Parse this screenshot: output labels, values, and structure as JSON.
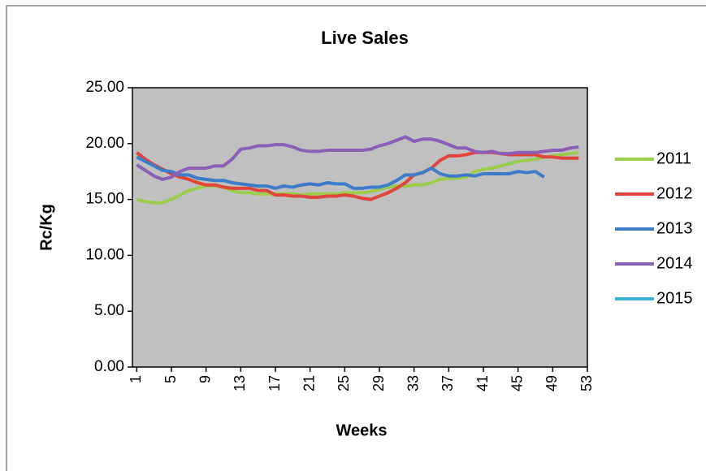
{
  "chart_data": {
    "type": "line",
    "title": "Live Sales",
    "x_label": "Weeks",
    "y_label": "Rc/Kg",
    "x": [
      1,
      2,
      3,
      4,
      5,
      6,
      7,
      8,
      9,
      10,
      11,
      12,
      13,
      14,
      15,
      16,
      17,
      18,
      19,
      20,
      21,
      22,
      23,
      24,
      25,
      26,
      27,
      28,
      29,
      30,
      31,
      32,
      33,
      34,
      35,
      36,
      37,
      38,
      39,
      40,
      41,
      42,
      43,
      44,
      45,
      46,
      47,
      48,
      49,
      50,
      51,
      52,
      53
    ],
    "xlim": [
      0.5,
      53
    ],
    "xticks": [
      1,
      5,
      9,
      13,
      17,
      21,
      25,
      29,
      33,
      37,
      41,
      45,
      49,
      53
    ],
    "ylim": [
      0,
      25
    ],
    "yticks": [
      {
        "value": 0,
        "label": "0.00"
      },
      {
        "value": 5,
        "label": "5.00"
      },
      {
        "value": 10,
        "label": "10.00"
      },
      {
        "value": 15,
        "label": "15.00"
      },
      {
        "value": 20,
        "label": "20.00"
      },
      {
        "value": 25,
        "label": "25.00"
      }
    ],
    "legend": "right",
    "plot_background": "#c0c0c0",
    "series": [
      {
        "name": "2011",
        "color": "#9acd4c",
        "values": [
          15.0,
          14.8,
          14.7,
          14.7,
          15.0,
          15.4,
          15.8,
          16.0,
          16.2,
          16.2,
          16.1,
          15.8,
          15.6,
          15.6,
          15.5,
          15.5,
          15.5,
          15.5,
          15.5,
          15.4,
          15.5,
          15.5,
          15.5,
          15.5,
          15.6,
          15.6,
          15.6,
          15.7,
          15.9,
          16.1,
          16.2,
          16.2,
          16.3,
          16.3,
          16.5,
          16.8,
          16.9,
          16.9,
          17.0,
          17.5,
          17.7,
          17.8,
          18.0,
          18.2,
          18.4,
          18.5,
          18.6,
          18.8,
          18.9,
          19.0,
          19.1,
          19.2,
          null
        ]
      },
      {
        "name": "2012",
        "color": "#e0443a",
        "values": [
          19.2,
          18.6,
          18.1,
          17.7,
          17.3,
          17.0,
          16.8,
          16.5,
          16.3,
          16.3,
          16.1,
          16.0,
          16.0,
          16.0,
          15.8,
          15.8,
          15.4,
          15.4,
          15.3,
          15.3,
          15.2,
          15.2,
          15.3,
          15.3,
          15.4,
          15.3,
          15.1,
          15.0,
          15.3,
          15.6,
          16.0,
          16.5,
          17.2,
          17.4,
          17.8,
          18.5,
          18.9,
          18.9,
          19.0,
          19.2,
          19.2,
          19.2,
          19.1,
          19.0,
          19.0,
          19.0,
          19.0,
          18.8,
          18.8,
          18.7,
          18.7,
          18.7,
          null
        ]
      },
      {
        "name": "2013",
        "color": "#3d7cc9",
        "values": [
          18.8,
          18.4,
          18.0,
          17.6,
          17.5,
          17.2,
          17.2,
          16.9,
          16.8,
          16.7,
          16.7,
          16.5,
          16.4,
          16.3,
          16.2,
          16.2,
          16.0,
          16.2,
          16.1,
          16.3,
          16.4,
          16.3,
          16.5,
          16.4,
          16.4,
          16.0,
          16.0,
          16.1,
          16.1,
          16.3,
          16.7,
          17.2,
          17.2,
          17.4,
          17.8,
          17.3,
          17.1,
          17.1,
          17.2,
          17.1,
          17.3,
          17.3,
          17.3,
          17.3,
          17.5,
          17.4,
          17.5,
          17.0,
          null,
          null,
          null,
          null,
          null
        ]
      },
      {
        "name": "2014",
        "color": "#8b5fb5",
        "values": [
          18.1,
          17.6,
          17.1,
          16.8,
          17.0,
          17.5,
          17.8,
          17.8,
          17.8,
          18.0,
          18.0,
          18.6,
          19.5,
          19.6,
          19.8,
          19.8,
          19.9,
          19.9,
          19.7,
          19.4,
          19.3,
          19.3,
          19.4,
          19.4,
          19.4,
          19.4,
          19.4,
          19.5,
          19.8,
          20.0,
          20.3,
          20.6,
          20.2,
          20.4,
          20.4,
          20.2,
          19.9,
          19.6,
          19.6,
          19.3,
          19.2,
          19.3,
          19.1,
          19.1,
          19.2,
          19.2,
          19.2,
          19.3,
          19.4,
          19.4,
          19.6,
          19.7,
          null
        ]
      },
      {
        "name": "2015",
        "color": "#3fb3d6",
        "values": [
          null,
          null,
          null,
          null,
          null,
          null,
          null,
          null,
          null,
          null,
          null,
          null,
          null,
          null,
          null,
          null,
          null,
          null,
          null,
          null,
          null,
          null,
          null,
          null,
          null,
          null,
          null,
          null,
          null,
          null,
          null,
          null,
          null,
          null,
          null,
          null,
          null,
          null,
          null,
          null,
          null,
          null,
          null,
          null,
          null,
          null,
          null,
          null,
          null,
          null,
          null,
          null,
          null
        ]
      }
    ]
  }
}
